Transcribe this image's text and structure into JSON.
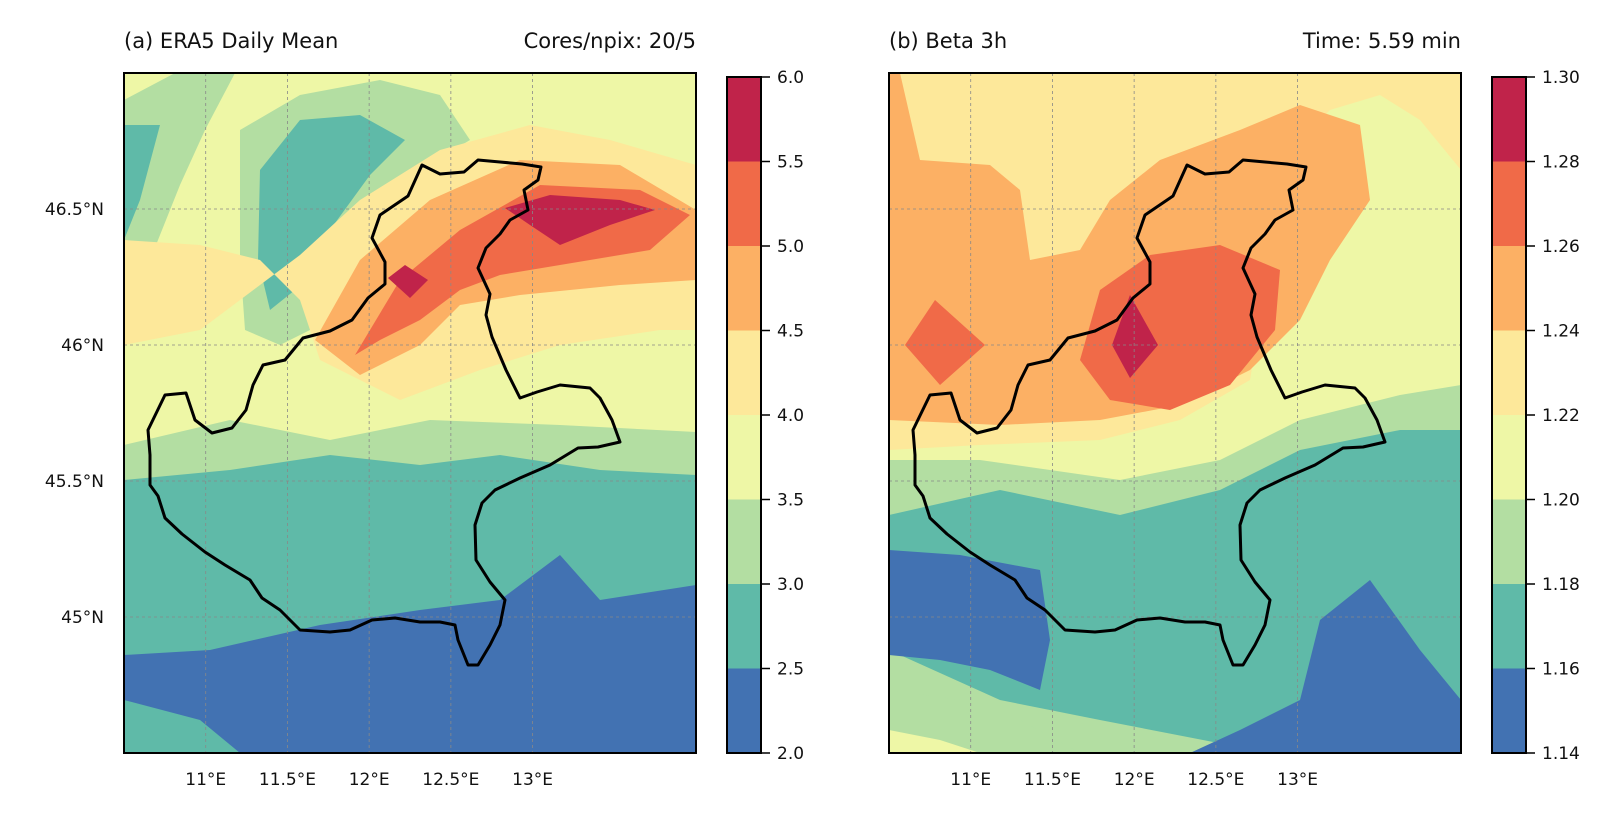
{
  "chart_data": [
    {
      "type": "heatmap",
      "title": "(a) ERA5 Daily Mean",
      "right_title": "Cores/npix: 20/5",
      "x_ticks": [
        "11°E",
        "11.5°E",
        "12°E",
        "12.5°E",
        "13°E"
      ],
      "x_tick_values": [
        11.0,
        11.5,
        12.0,
        12.5,
        13.0
      ],
      "y_ticks": [
        "46.5°N",
        "46°N",
        "45.5°N",
        "45°N"
      ],
      "y_tick_values": [
        46.5,
        46.0,
        45.5,
        45.0
      ],
      "xlim": [
        10.5,
        14.0
      ],
      "ylim": [
        44.5,
        47.0
      ],
      "grid": true,
      "colorbar": {
        "levels": [
          2.0,
          2.5,
          3.0,
          3.5,
          4.0,
          4.5,
          5.0,
          5.5,
          6.0
        ],
        "tick_labels": [
          "2.0",
          "2.5",
          "3.0",
          "3.5",
          "4.0",
          "4.5",
          "5.0",
          "5.5",
          "6.0"
        ]
      }
    },
    {
      "type": "heatmap",
      "title": "(b) Beta 3h",
      "right_title": "Time: 5.59 min",
      "x_ticks": [
        "11°E",
        "11.5°E",
        "12°E",
        "12.5°E",
        "13°E"
      ],
      "x_tick_values": [
        11.0,
        11.5,
        12.0,
        12.5,
        13.0
      ],
      "y_ticks": [],
      "xlim": [
        10.5,
        14.0
      ],
      "ylim": [
        44.5,
        47.0
      ],
      "grid": true,
      "colorbar": {
        "levels": [
          1.14,
          1.16,
          1.18,
          1.2,
          1.22,
          1.24,
          1.26,
          1.28,
          1.3
        ],
        "tick_labels": [
          "1.14",
          "1.16",
          "1.18",
          "1.20",
          "1.22",
          "1.24",
          "1.26",
          "1.28",
          "1.30"
        ]
      }
    }
  ],
  "palette": [
    "#4272b2",
    "#5fbaa8",
    "#b3dea2",
    "#eef7a6",
    "#fde89a",
    "#fcb064",
    "#f06a48",
    "#c0234a"
  ]
}
